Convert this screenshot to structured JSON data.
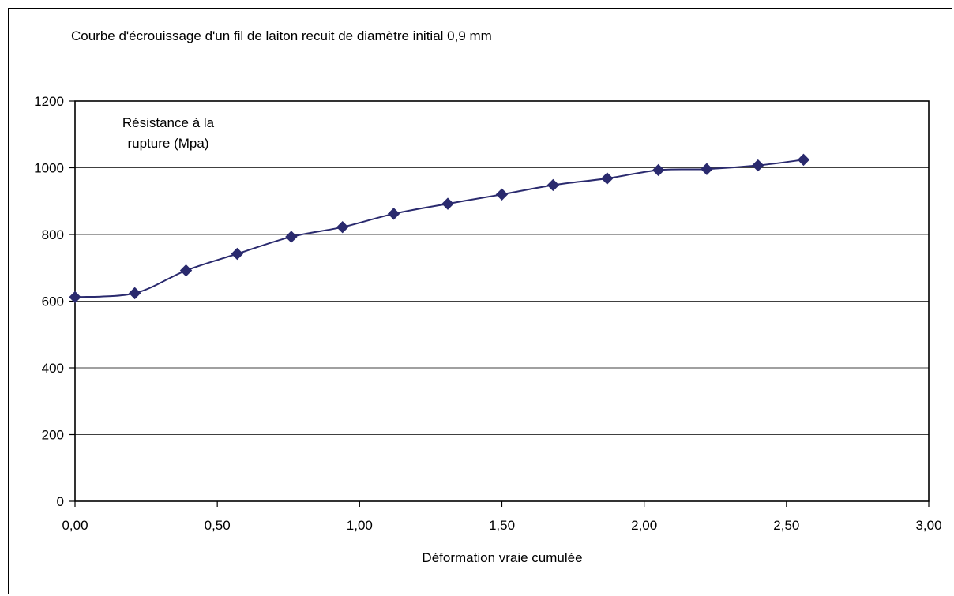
{
  "chart_data": {
    "type": "line",
    "title": "Courbe d'écrouissage d'un fil de laiton recuit de diamètre initial 0,9 mm",
    "xlabel": "Déformation vraie cumulée",
    "ylabel": "Résistance à la rupture (Mpa)",
    "ylabel_lines": [
      "Résistance à la",
      "rupture (Mpa)"
    ],
    "xlim": [
      0,
      3
    ],
    "ylim": [
      0,
      1200
    ],
    "x_ticks": [
      0,
      0.5,
      1,
      1.5,
      2,
      2.5,
      3
    ],
    "x_tick_labels": [
      "0,00",
      "0,50",
      "1,00",
      "1,50",
      "2,00",
      "2,50",
      "3,00"
    ],
    "y_ticks": [
      0,
      200,
      400,
      600,
      800,
      1000,
      1200
    ],
    "y_tick_labels": [
      "0",
      "200",
      "400",
      "600",
      "800",
      "1000",
      "1200"
    ],
    "grid": "horizontal",
    "legend": "none",
    "line_style": "smoothed",
    "series": [
      {
        "color": "#2a2a6e",
        "marker": "diamond",
        "x": [
          0.0,
          0.21,
          0.39,
          0.57,
          0.76,
          0.94,
          1.12,
          1.31,
          1.5,
          1.68,
          1.87,
          2.05,
          2.22,
          2.4,
          2.56
        ],
        "y": [
          612,
          624,
          692,
          742,
          793,
          822,
          862,
          892,
          920,
          948,
          968,
          993,
          996,
          1007,
          1024
        ]
      }
    ]
  }
}
